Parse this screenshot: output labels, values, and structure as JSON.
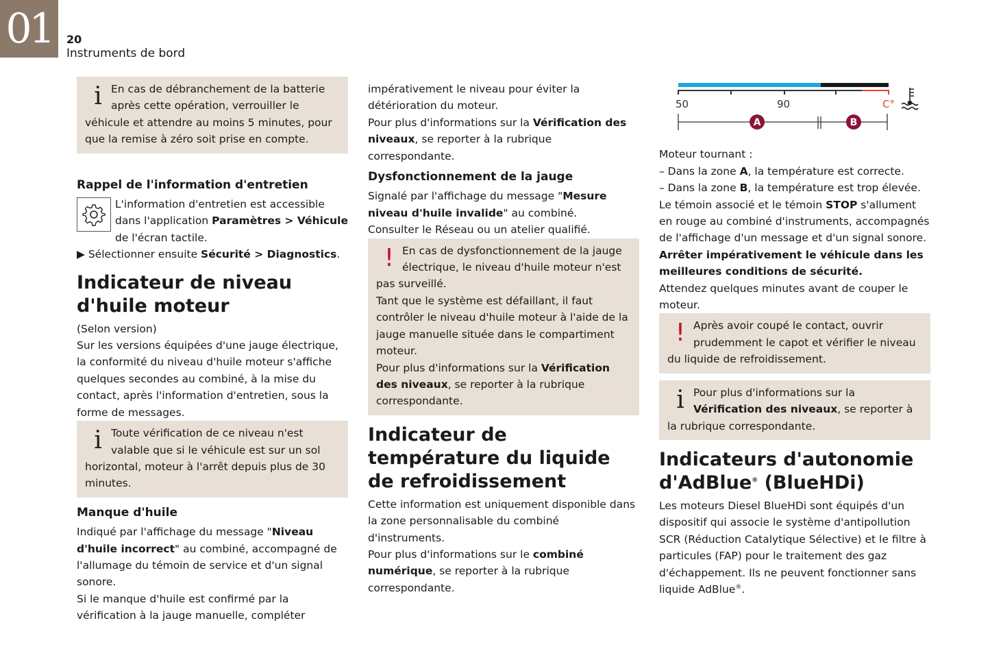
{
  "header": {
    "chapter": "01",
    "page": "20",
    "title": "Instruments de bord"
  },
  "gauge": {
    "tick_50": "50",
    "tick_90": "90",
    "unit": "C°",
    "zone_a": "A",
    "zone_b": "B",
    "colors": {
      "normal": "#1ba7dc",
      "high": "#1a1a1a",
      "danger": "#e8402a",
      "badge": "#8a1538"
    }
  },
  "columns": [
    {
      "blocks": [
        {
          "type": "note",
          "icon": "info",
          "segs": [
            {
              "t": "En cas de débranchement de la batterie après cette opération, verrouiller le véhicule et attendre au moins 5 minutes, pour que la remise à zéro soit prise en compte."
            }
          ]
        },
        {
          "type": "gap"
        },
        {
          "type": "h3",
          "segs": [
            {
              "t": "Rappel de l'information d'entretien"
            }
          ]
        },
        {
          "type": "p",
          "icon": "gear",
          "segs": [
            {
              "t": "L'information d'entretien est accessible dans l'application "
            },
            {
              "t": "Paramètres > Véhicule",
              "b": 1
            },
            {
              "t": " de l'écran tactile."
            }
          ]
        },
        {
          "type": "p",
          "segs": [
            {
              "t": "▶  Sélectionner ensuite "
            },
            {
              "t": "Sécurité > Diagnostics",
              "b": 1
            },
            {
              "t": "."
            }
          ]
        },
        {
          "type": "h2",
          "segs": [
            {
              "t": "Indicateur de niveau d'huile moteur"
            }
          ]
        },
        {
          "type": "p",
          "segs": [
            {
              "t": "(Selon version)"
            }
          ]
        },
        {
          "type": "p",
          "segs": [
            {
              "t": "Sur les versions équipées d'une jauge électrique, la conformité du niveau d'huile moteur s'affiche quelques secondes au combiné, à la mise du contact, après l'information d'entretien, sous la forme de messages."
            }
          ]
        },
        {
          "type": "note",
          "icon": "info",
          "segs": [
            {
              "t": "Toute vérification de ce niveau n'est valable que si le véhicule est sur un sol horizontal, moteur à l'arrêt depuis plus de 30 minutes."
            }
          ]
        },
        {
          "type": "h3",
          "segs": [
            {
              "t": "Manque d'huile"
            }
          ]
        },
        {
          "type": "p",
          "segs": [
            {
              "t": "Indiqué par l'affichage du message \""
            },
            {
              "t": "Niveau d'huile incorrect",
              "b": 1
            },
            {
              "t": "\" au combiné, accompagné de l'allumage du témoin de service et d'un signal sonore."
            }
          ]
        },
        {
          "type": "p",
          "segs": [
            {
              "t": "Si le manque d'huile est confirmé par la vérification à la jauge manuelle, compléter"
            }
          ]
        }
      ]
    },
    {
      "blocks": [
        {
          "type": "p",
          "segs": [
            {
              "t": "impérativement le niveau pour éviter la détérioration du moteur."
            }
          ]
        },
        {
          "type": "p",
          "segs": [
            {
              "t": "Pour plus d'informations sur la "
            },
            {
              "t": "Vérification des niveaux",
              "b": 1
            },
            {
              "t": ", se reporter à la rubrique correspondante."
            }
          ]
        },
        {
          "type": "h3",
          "segs": [
            {
              "t": "Dysfonctionnement de la jauge"
            }
          ]
        },
        {
          "type": "p",
          "segs": [
            {
              "t": "Signalé par l'affichage du message \""
            },
            {
              "t": "Mesure niveau d'huile invalide",
              "b": 1
            },
            {
              "t": "\" au combiné."
            }
          ]
        },
        {
          "type": "p",
          "segs": [
            {
              "t": "Consulter le Réseau ou un atelier qualifié."
            }
          ]
        },
        {
          "type": "note",
          "icon": "warn",
          "segs": [
            {
              "t": "En cas de dysfonctionnement de la jauge électrique, le niveau d'huile moteur n'est pas surveillé."
            },
            {
              "br": 1
            },
            {
              "t": "Tant que le système est défaillant, il faut contrôler le niveau d'huile moteur à l'aide de la jauge manuelle située dans le compartiment moteur."
            },
            {
              "br": 1
            },
            {
              "t": "Pour plus d'informations sur la "
            },
            {
              "t": "Vérification des niveaux",
              "b": 1
            },
            {
              "t": ", se reporter à la rubrique correspondante."
            }
          ]
        },
        {
          "type": "h2",
          "segs": [
            {
              "t": "Indicateur de température du liquide de refroidissement"
            }
          ]
        },
        {
          "type": "p",
          "segs": [
            {
              "t": "Cette information est uniquement disponible dans la zone personnalisable du combiné d'instruments."
            }
          ]
        },
        {
          "type": "p",
          "segs": [
            {
              "t": "Pour plus d'informations sur le "
            },
            {
              "t": "combiné numérique",
              "b": 1
            },
            {
              "t": ", se reporter à la rubrique correspondante."
            }
          ]
        }
      ]
    },
    {
      "blocks": [
        {
          "type": "gauge"
        },
        {
          "type": "p",
          "segs": [
            {
              "t": "Moteur tournant :"
            }
          ]
        },
        {
          "type": "p",
          "segs": [
            {
              "t": "–  Dans la zone "
            },
            {
              "t": "A",
              "b": 1
            },
            {
              "t": ", la température est correcte."
            }
          ]
        },
        {
          "type": "p",
          "segs": [
            {
              "t": "–  Dans la zone "
            },
            {
              "t": "B",
              "b": 1
            },
            {
              "t": ", la température est trop élevée."
            }
          ]
        },
        {
          "type": "p",
          "segs": [
            {
              "t": "Le témoin associé et le témoin "
            },
            {
              "t": "STOP",
              "b": 1
            },
            {
              "t": " s'allument en rouge au combiné d'instruments, accompagnés de l'affichage d'un message et d'un signal sonore."
            }
          ]
        },
        {
          "type": "p",
          "segs": [
            {
              "t": "Arrêter impérativement le véhicule dans les meilleures conditions de sécurité.",
              "b": 1
            }
          ]
        },
        {
          "type": "p",
          "segs": [
            {
              "t": "Attendez quelques minutes avant de couper le moteur."
            }
          ]
        },
        {
          "type": "note",
          "icon": "warn",
          "segs": [
            {
              "t": "Après avoir coupé le contact, ouvrir prudemment le capot et vérifier le niveau du liquide de refroidissement."
            }
          ]
        },
        {
          "type": "note",
          "icon": "info",
          "segs": [
            {
              "t": "Pour plus d'informations sur la "
            },
            {
              "t": "Vérification des niveaux",
              "b": 1
            },
            {
              "t": ", se reporter à la rubrique correspondante."
            }
          ]
        },
        {
          "type": "h2",
          "segs": [
            {
              "t": "Indicateurs d'autonomie d'AdBlue"
            },
            {
              "t": "®",
              "sup": 1
            },
            {
              "t": " (BlueHDi)"
            }
          ]
        },
        {
          "type": "p",
          "segs": [
            {
              "t": "Les moteurs Diesel BlueHDi sont équipés d'un dispositif qui associe le système d'antipollution SCR (Réduction Catalytique Sélective) et le filtre à particules (FAP) pour le traitement des gaz d'échappement. Ils ne peuvent fonctionner sans liquide AdBlue"
            },
            {
              "t": "®",
              "sup": 1
            },
            {
              "t": "."
            }
          ]
        }
      ]
    }
  ]
}
